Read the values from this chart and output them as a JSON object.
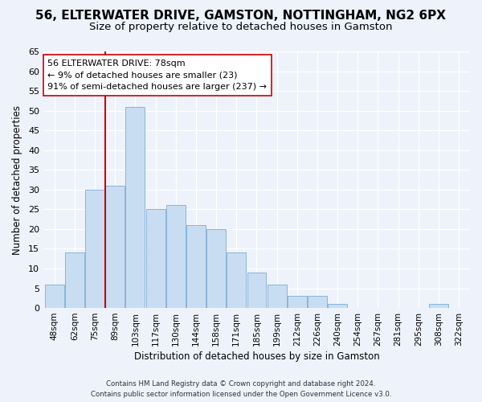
{
  "title": "56, ELTERWATER DRIVE, GAMSTON, NOTTINGHAM, NG2 6PX",
  "subtitle": "Size of property relative to detached houses in Gamston",
  "xlabel": "Distribution of detached houses by size in Gamston",
  "ylabel": "Number of detached properties",
  "bin_labels": [
    "48sqm",
    "62sqm",
    "75sqm",
    "89sqm",
    "103sqm",
    "117sqm",
    "130sqm",
    "144sqm",
    "158sqm",
    "171sqm",
    "185sqm",
    "199sqm",
    "212sqm",
    "226sqm",
    "240sqm",
    "254sqm",
    "267sqm",
    "281sqm",
    "295sqm",
    "308sqm",
    "322sqm"
  ],
  "bar_heights": [
    6,
    14,
    30,
    31,
    51,
    25,
    26,
    21,
    20,
    14,
    9,
    6,
    3,
    3,
    1,
    0,
    0,
    0,
    0,
    1,
    0
  ],
  "bar_color": "#c9ddf2",
  "bar_edge_color": "#8ab4d8",
  "vline_pos": 2.5,
  "vline_color": "#cc0000",
  "ylim": [
    0,
    65
  ],
  "yticks": [
    0,
    5,
    10,
    15,
    20,
    25,
    30,
    35,
    40,
    45,
    50,
    55,
    60,
    65
  ],
  "annotation_title": "56 ELTERWATER DRIVE: 78sqm",
  "annotation_line1": "← 9% of detached houses are smaller (23)",
  "annotation_line2": "91% of semi-detached houses are larger (237) →",
  "annotation_box_color": "#ffffff",
  "annotation_box_edge": "#cc0000",
  "footer_line1": "Contains HM Land Registry data © Crown copyright and database right 2024.",
  "footer_line2": "Contains public sector information licensed under the Open Government Licence v3.0.",
  "bg_color": "#edf2fb",
  "plot_bg_color": "#edf2fb",
  "title_fontsize": 11,
  "subtitle_fontsize": 9.5
}
